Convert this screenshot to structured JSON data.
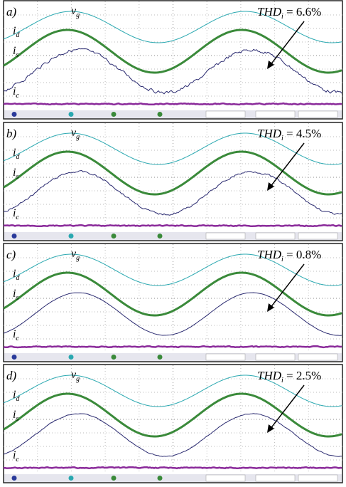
{
  "figure": {
    "panels": [
      {
        "label": "a)",
        "thd": {
          "symbol": "THD",
          "subscript": "i",
          "value": " = 6.6%"
        },
        "signals": [
          {
            "symbol": "v",
            "subscript": "g"
          },
          {
            "symbol": "i",
            "subscript": "d"
          },
          {
            "symbol": "i",
            "subscript": "s"
          },
          {
            "symbol": "i",
            "subscript": "c"
          }
        ]
      },
      {
        "label": "b)",
        "thd": {
          "symbol": "THD",
          "subscript": "i",
          "value": " = 4.5%"
        },
        "signals": [
          {
            "symbol": "v",
            "subscript": "g"
          },
          {
            "symbol": "i",
            "subscript": "d"
          },
          {
            "symbol": "i",
            "subscript": "s"
          },
          {
            "symbol": "i",
            "subscript": "c"
          }
        ]
      },
      {
        "label": "c)",
        "thd": {
          "symbol": "THD",
          "subscript": "i",
          "value": " = 0.8%"
        },
        "signals": [
          {
            "symbol": "v",
            "subscript": "g"
          },
          {
            "symbol": "i",
            "subscript": "d"
          },
          {
            "symbol": "i",
            "subscript": "s"
          },
          {
            "symbol": "i",
            "subscript": "c"
          }
        ]
      },
      {
        "label": "d)",
        "thd": {
          "symbol": "THD",
          "subscript": "i",
          "value": " = 2.5%"
        },
        "signals": [
          {
            "symbol": "v",
            "subscript": "g"
          },
          {
            "symbol": "i",
            "subscript": "d"
          },
          {
            "symbol": "i",
            "subscript": "s"
          },
          {
            "symbol": "i",
            "subscript": "c"
          }
        ]
      }
    ]
  }
}
